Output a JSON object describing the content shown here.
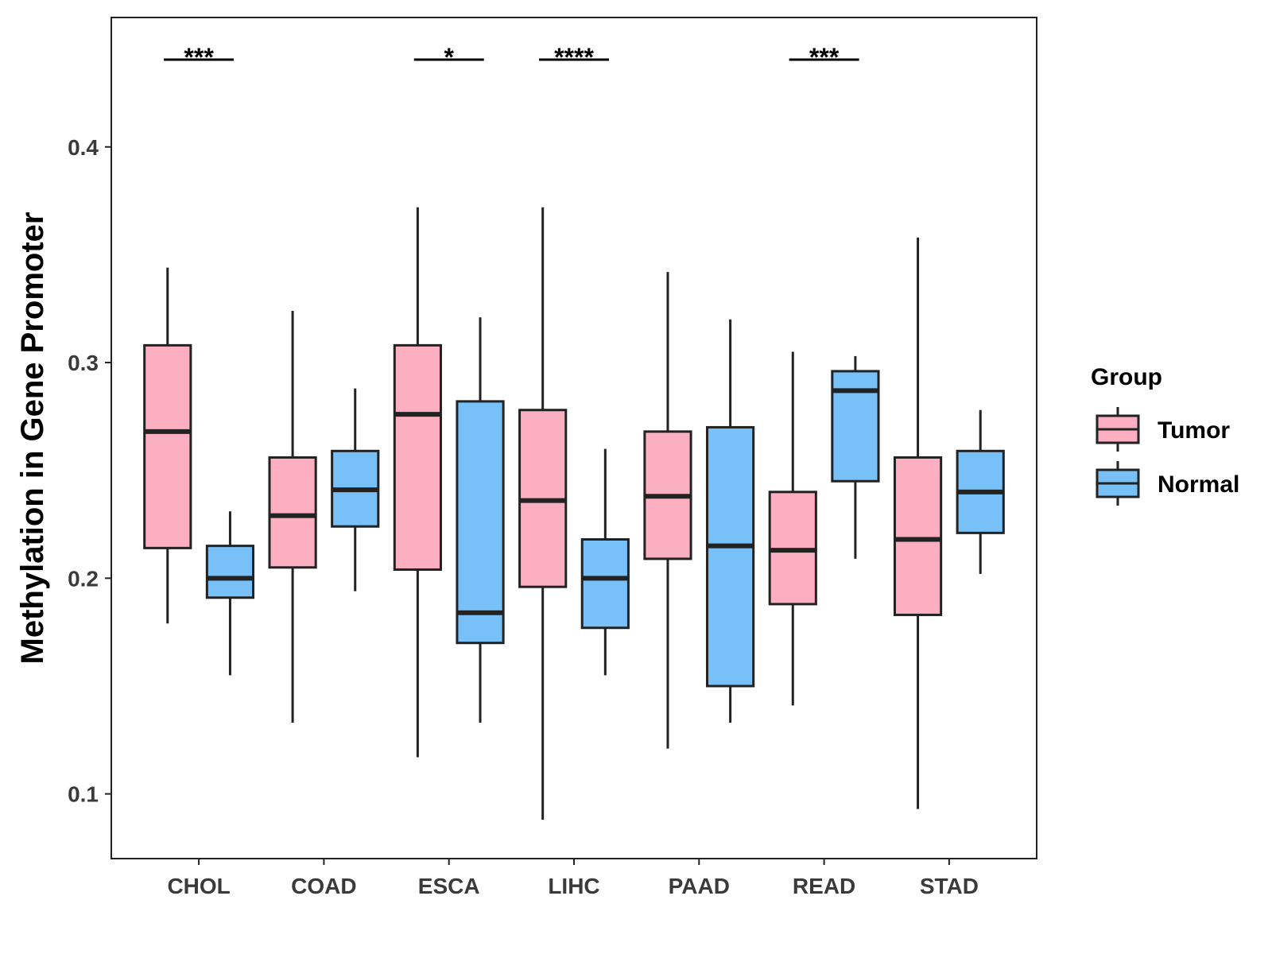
{
  "chart_data": {
    "type": "boxplot",
    "title": "",
    "xlabel": "",
    "ylabel": "Methylation in Gene Promoter",
    "ylim": [
      0.07,
      0.46
    ],
    "yticks": [
      0.1,
      0.2,
      0.3,
      0.4
    ],
    "ytick_labels": [
      "0.1",
      "0.2",
      "0.3",
      "0.4"
    ],
    "grid": false,
    "legend_position": "right",
    "categories": [
      "CHOL",
      "COAD",
      "ESCA",
      "LIHC",
      "PAAD",
      "READ",
      "STAD"
    ],
    "legend": {
      "title": "Group",
      "entries": [
        {
          "name": "Tumor",
          "color": "#FBAFC0"
        },
        {
          "name": "Normal",
          "color": "#78C0F8"
        }
      ]
    },
    "series": [
      {
        "name": "Tumor",
        "color": "#FBAFC0",
        "boxes": [
          {
            "category": "CHOL",
            "min": 0.179,
            "q1": 0.214,
            "median": 0.268,
            "q3": 0.308,
            "max": 0.344
          },
          {
            "category": "COAD",
            "min": 0.133,
            "q1": 0.205,
            "median": 0.229,
            "q3": 0.256,
            "max": 0.324
          },
          {
            "category": "ESCA",
            "min": 0.117,
            "q1": 0.204,
            "median": 0.276,
            "q3": 0.308,
            "max": 0.372
          },
          {
            "category": "LIHC",
            "min": 0.088,
            "q1": 0.196,
            "median": 0.236,
            "q3": 0.278,
            "max": 0.372
          },
          {
            "category": "PAAD",
            "min": 0.121,
            "q1": 0.209,
            "median": 0.238,
            "q3": 0.268,
            "max": 0.342
          },
          {
            "category": "READ",
            "min": 0.141,
            "q1": 0.188,
            "median": 0.213,
            "q3": 0.24,
            "max": 0.305
          },
          {
            "category": "STAD",
            "min": 0.093,
            "q1": 0.183,
            "median": 0.218,
            "q3": 0.256,
            "max": 0.358
          }
        ]
      },
      {
        "name": "Normal",
        "color": "#78C0F8",
        "boxes": [
          {
            "category": "CHOL",
            "min": 0.155,
            "q1": 0.191,
            "median": 0.2,
            "q3": 0.215,
            "max": 0.231
          },
          {
            "category": "COAD",
            "min": 0.194,
            "q1": 0.224,
            "median": 0.241,
            "q3": 0.259,
            "max": 0.288
          },
          {
            "category": "ESCA",
            "min": 0.133,
            "q1": 0.17,
            "median": 0.184,
            "q3": 0.282,
            "max": 0.321
          },
          {
            "category": "LIHC",
            "min": 0.155,
            "q1": 0.177,
            "median": 0.2,
            "q3": 0.218,
            "max": 0.26
          },
          {
            "category": "PAAD",
            "min": 0.133,
            "q1": 0.15,
            "median": 0.215,
            "q3": 0.27,
            "max": 0.32
          },
          {
            "category": "READ",
            "min": 0.209,
            "q1": 0.245,
            "median": 0.287,
            "q3": 0.296,
            "max": 0.303
          },
          {
            "category": "STAD",
            "min": 0.202,
            "q1": 0.221,
            "median": 0.24,
            "q3": 0.259,
            "max": 0.278
          }
        ]
      }
    ],
    "annotations": [
      {
        "category": "CHOL",
        "text": "***"
      },
      {
        "category": "ESCA",
        "text": "*"
      },
      {
        "category": "LIHC",
        "text": "****"
      },
      {
        "category": "READ",
        "text": "***"
      }
    ]
  }
}
